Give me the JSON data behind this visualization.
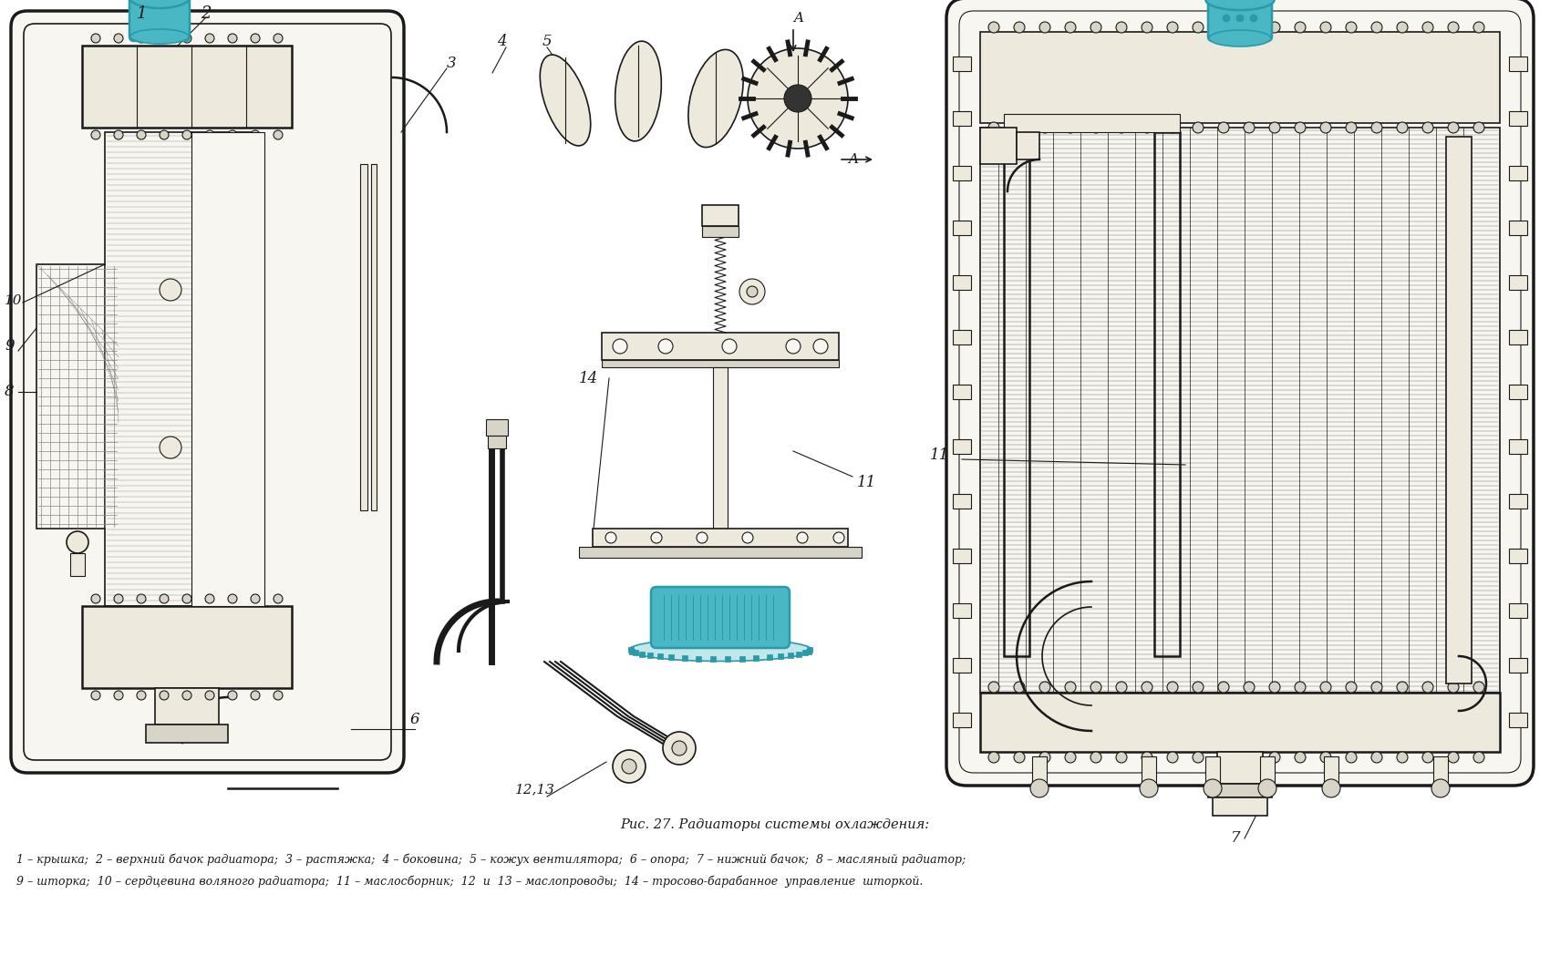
{
  "background_color": "#ffffff",
  "title_line": "Рис. 27. Радиаторы системы охлаждения:",
  "caption_line1": "1 – крышка;  2 – верхний бачок радиатора;  3 – растяжка;  4 – боковина;  5 – кожух вентилятора;  6 – опора;  7 – нижний бачок;  8 – масляный радиатор;",
  "caption_line2": "9 – шторка;  10 – сердцевина воляного радиатора;  11 – маслосборник;  12  и  13 – маслопроводы;  14 – тросово-барабанное  управление  шторкой.",
  "fig_width": 17.0,
  "fig_height": 10.49,
  "dpi": 100,
  "title_fontsize": 10.5,
  "caption_fontsize": 9.0,
  "text_color": "#1a1a1a",
  "cyan_color": "#4ab8c4",
  "cyan_dark": "#2a9aaa",
  "line_color": "#1a1a1a",
  "fill_light": "#f8f6f0",
  "fill_mid": "#ede9dc",
  "fill_dark": "#d8d4c8"
}
